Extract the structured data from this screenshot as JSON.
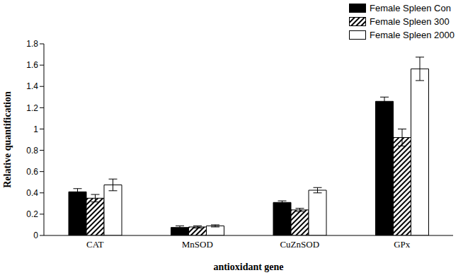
{
  "chart_data": {
    "type": "bar",
    "x_label": "antioxidant gene",
    "y_label": "Relative quantification",
    "categories": [
      "CAT",
      "MnSOD",
      "CuZnSOD",
      "GPx"
    ],
    "series": [
      {
        "name": "Female Spleen Con",
        "color": "#000000",
        "values": [
          0.41,
          0.075,
          0.31,
          1.26
        ],
        "errors": [
          0.03,
          0.015,
          0.015,
          0.04
        ]
      },
      {
        "name": "Female Spleen 300",
        "color": "#000000",
        "values": [
          0.35,
          0.08,
          0.24,
          0.92
        ],
        "errors": [
          0.035,
          0.01,
          0.015,
          0.08
        ]
      },
      {
        "name": "Female Spleen 2000",
        "color": "#ffffff",
        "values": [
          0.475,
          0.09,
          0.425,
          1.565
        ],
        "errors": [
          0.055,
          0.01,
          0.025,
          0.11
        ]
      }
    ],
    "ylim": [
      0,
      1.8
    ],
    "yticks": [
      0,
      0.2,
      0.4,
      0.6,
      0.8,
      1,
      1.2,
      1.4,
      1.6,
      1.8
    ],
    "grid": false,
    "legend": "upper right"
  }
}
